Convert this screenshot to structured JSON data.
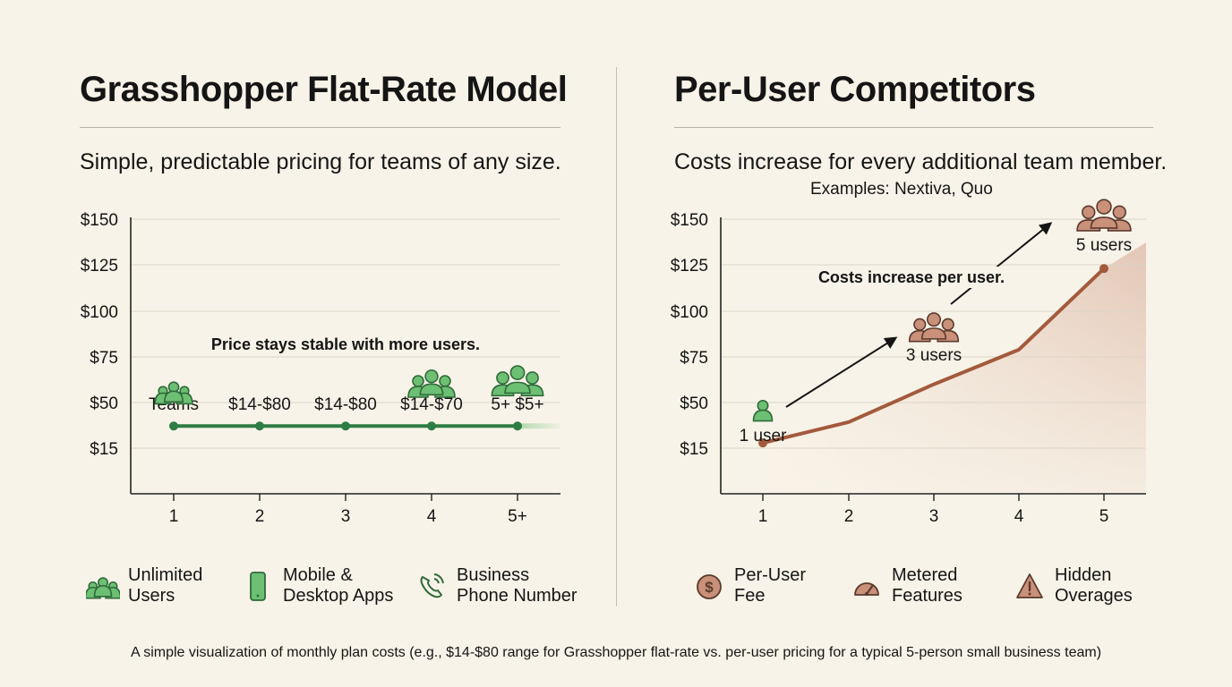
{
  "left": {
    "title": "Grasshopper Flat-Rate Model",
    "subtitle": "Simple, predictable pricing for teams of any size.",
    "legend": [
      {
        "label": "Unlimited\nUsers",
        "icon": "group-icon"
      },
      {
        "label": "Mobile &\nDesktop Apps",
        "icon": "smartphone-icon"
      },
      {
        "label": "Business\nPhone Number",
        "icon": "phone-icon"
      }
    ]
  },
  "right": {
    "title": "Per-User Competitors",
    "subtitle": "Costs increase for every additional team member.",
    "examples": "Examples: Nextiva, Quo",
    "legend": [
      {
        "label": "Per-User\nFee",
        "icon": "dollar-coin-icon"
      },
      {
        "label": "Metered\nFeatures",
        "icon": "gauge-icon"
      },
      {
        "label": "Hidden\nOverages",
        "icon": "warning-icon"
      }
    ]
  },
  "caption": "A simple visualization of monthly plan costs (e.g., $14-$80 range for Grasshopper flat-rate vs. per-user pricing for a typical 5-person small business team)",
  "colors": {
    "green": "#2e7d44",
    "green_fill": "#6cbf73",
    "brown": "#a35a3c",
    "brown_fill": "#c9907a",
    "grid": "#dcd5c9"
  },
  "chart_data": [
    {
      "type": "line",
      "categories": [
        "1",
        "2",
        "3",
        "4",
        "5+"
      ],
      "y_ticks": [
        "$15",
        "$50",
        "$75",
        "$100",
        "$125",
        "$150"
      ],
      "series": [
        {
          "values": [
            32,
            32,
            32,
            32,
            32
          ]
        }
      ],
      "point_labels": [
        "Teams",
        "$14-$80",
        "$14-$80",
        "$14-$70",
        "5+ $5+"
      ],
      "annotation": "Price stays stable with more users.",
      "grid": true
    },
    {
      "type": "line",
      "categories": [
        "1",
        "2",
        "3",
        "4",
        "5"
      ],
      "y_ticks": [
        "$15",
        "$50",
        "$75",
        "$100",
        "$125",
        "$150"
      ],
      "series": [
        {
          "values": [
            19,
            35,
            60,
            79,
            123
          ]
        }
      ],
      "user_labels": [
        {
          "label": "1 user",
          "x_index": 0
        },
        {
          "label": "3 users",
          "x_index": 2
        },
        {
          "label": "5 users",
          "x_index": 4
        }
      ],
      "annotation": "Costs increase per user.",
      "grid": true
    }
  ]
}
